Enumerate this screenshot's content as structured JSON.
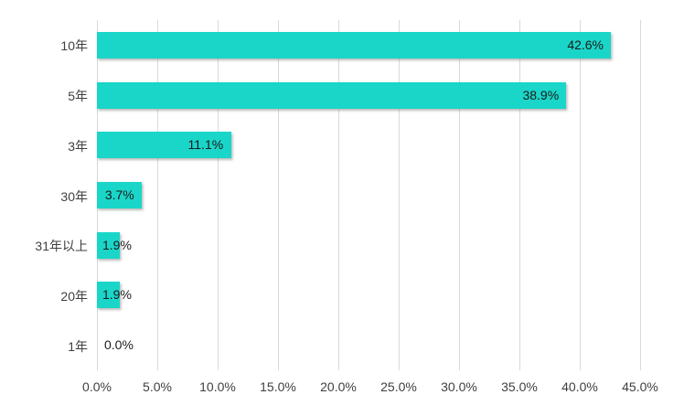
{
  "chart_data": {
    "type": "bar",
    "orientation": "horizontal",
    "title": "",
    "xlabel": "",
    "ylabel": "",
    "categories": [
      "10年",
      "5年",
      "3年",
      "30年",
      "31年以上",
      "20年",
      "1年"
    ],
    "values": [
      42.6,
      38.9,
      11.1,
      3.7,
      1.9,
      1.9,
      0.0
    ],
    "data_labels": [
      "42.6%",
      "38.9%",
      "11.1%",
      "3.7%",
      "1.9%",
      "1.9%",
      "0.0%"
    ],
    "xlim": [
      0,
      45
    ],
    "x_tick_values": [
      0,
      5,
      10,
      15,
      20,
      25,
      30,
      35,
      40,
      45
    ],
    "x_tick_labels": [
      "0.0%",
      "5.0%",
      "10.0%",
      "15.0%",
      "20.0%",
      "25.0%",
      "30.0%",
      "35.0%",
      "40.0%",
      "45.0%"
    ],
    "grid": "vertical",
    "legend": "none",
    "colors": {
      "bar_fill": "#1ad6c9",
      "gridline": "#d9d9d9",
      "category_text": "#3f3f3f",
      "tick_text": "#3f3f3f",
      "data_label_text": "#1a1a1a"
    }
  }
}
